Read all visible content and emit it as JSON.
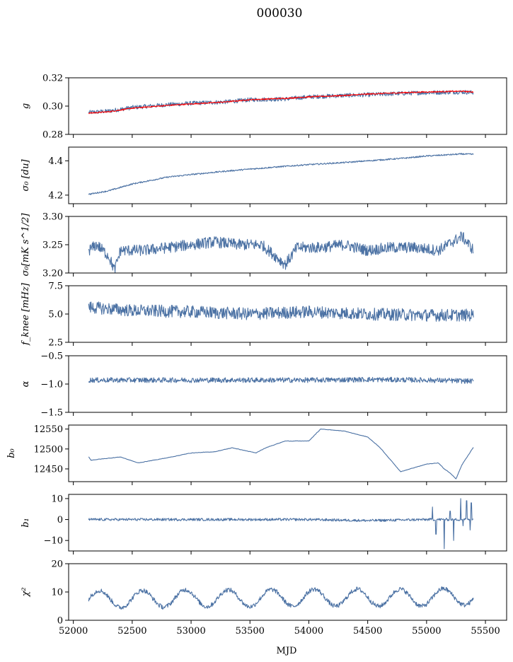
{
  "figure": {
    "title": "000030"
  },
  "chart_data": [
    {
      "type": "line",
      "ylabel": "g",
      "ylim": [
        0.28,
        0.32
      ],
      "yticks": [
        0.28,
        0.3,
        0.32
      ],
      "ytick_labels": [
        "0.28",
        "0.30",
        "0.32"
      ],
      "x": [
        52130,
        52300,
        52500,
        52800,
        53000,
        53300,
        53500,
        53800,
        54000,
        54300,
        54500,
        54800,
        55000,
        55300,
        55400
      ],
      "series": [
        {
          "color": "#4c72a4",
          "values": [
            0.2955,
            0.2965,
            0.299,
            0.301,
            0.302,
            0.303,
            0.3045,
            0.305,
            0.3065,
            0.3075,
            0.308,
            0.309,
            0.3095,
            0.31,
            0.3095
          ],
          "noise": 0.0015
        },
        {
          "color": "#ff0000",
          "values": [
            0.295,
            0.296,
            0.2985,
            0.3005,
            0.3015,
            0.303,
            0.3045,
            0.3055,
            0.3065,
            0.3075,
            0.3085,
            0.3095,
            0.31,
            0.3105,
            0.31
          ],
          "noise": 0.0004,
          "width": 2.5
        }
      ]
    },
    {
      "type": "line",
      "ylabel": "σ₀ [du]",
      "ylim": [
        4.15,
        4.48
      ],
      "yticks": [
        4.2,
        4.4
      ],
      "ytick_labels": [
        "4.2",
        "4.4"
      ],
      "x": [
        52130,
        52300,
        52500,
        52800,
        53000,
        53300,
        53500,
        53800,
        54000,
        54300,
        54500,
        54800,
        55000,
        55300,
        55400
      ],
      "series": [
        {
          "color": "#4c72a4",
          "values": [
            4.205,
            4.225,
            4.265,
            4.305,
            4.32,
            4.34,
            4.352,
            4.368,
            4.378,
            4.39,
            4.4,
            4.415,
            4.428,
            4.44,
            4.438
          ],
          "noise": 0.004
        }
      ]
    },
    {
      "type": "line",
      "ylabel": "σ₀[mK s^1/2]",
      "ylim": [
        3.2,
        3.3
      ],
      "yticks": [
        3.2,
        3.25,
        3.3
      ],
      "ytick_labels": [
        "3.20",
        "3.25",
        "3.30"
      ],
      "x": [
        52130,
        52200,
        52300,
        52350,
        52400,
        52600,
        52800,
        53000,
        53200,
        53400,
        53600,
        53800,
        53900,
        54100,
        54300,
        54500,
        54700,
        54900,
        55100,
        55300,
        55400
      ],
      "series": [
        {
          "color": "#4c72a4",
          "values": [
            3.24,
            3.25,
            3.23,
            3.205,
            3.24,
            3.24,
            3.245,
            3.25,
            3.255,
            3.25,
            3.25,
            3.215,
            3.245,
            3.245,
            3.25,
            3.24,
            3.245,
            3.245,
            3.24,
            3.265,
            3.24
          ],
          "noise": 0.01
        }
      ]
    },
    {
      "type": "line",
      "ylabel": "f_knee [mHz]",
      "ylim": [
        2.5,
        7.5
      ],
      "yticks": [
        2.5,
        5.0,
        7.5
      ],
      "ytick_labels": [
        "2.5",
        "5.0",
        "7.5"
      ],
      "x": [
        52130,
        52500,
        53000,
        53500,
        54000,
        54500,
        55000,
        55400
      ],
      "series": [
        {
          "color": "#4c72a4",
          "values": [
            5.6,
            5.3,
            5.2,
            5.0,
            5.2,
            5.0,
            4.9,
            4.9
          ],
          "noise": 0.55
        }
      ]
    },
    {
      "type": "line",
      "ylabel": "α",
      "ylim": [
        -1.5,
        -0.5
      ],
      "yticks": [
        -1.5,
        -1.0,
        -0.5
      ],
      "ytick_labels": [
        "−1.5",
        "−1.0",
        "−0.5"
      ],
      "x": [
        52130,
        52500,
        53000,
        53500,
        54000,
        54500,
        55000,
        55400
      ],
      "series": [
        {
          "color": "#4c72a4",
          "values": [
            -0.93,
            -0.93,
            -0.93,
            -0.93,
            -0.93,
            -0.92,
            -0.93,
            -0.95
          ],
          "noise": 0.045
        }
      ]
    },
    {
      "type": "line",
      "ylabel": "b₀",
      "ylim": [
        12418,
        12560
      ],
      "yticks": [
        12450,
        12500,
        12550
      ],
      "ytick_labels": [
        "12450",
        "12500",
        "12550"
      ],
      "x": [
        52130,
        52150,
        52400,
        52550,
        52800,
        53000,
        53200,
        53350,
        53550,
        53650,
        53800,
        54000,
        54100,
        54300,
        54500,
        54600,
        54780,
        55000,
        55100,
        55150,
        55200,
        55250,
        55300,
        55400
      ],
      "series": [
        {
          "color": "#4c72a4",
          "values": [
            12480,
            12472,
            12480,
            12465,
            12478,
            12490,
            12493,
            12503,
            12490,
            12505,
            12520,
            12520,
            12550,
            12545,
            12530,
            12505,
            12443,
            12462,
            12465,
            12450,
            12440,
            12425,
            12460,
            12505
          ],
          "noise": 0.8
        }
      ]
    },
    {
      "type": "line",
      "ylabel": "b₁",
      "ylim": [
        -15,
        12
      ],
      "yticks": [
        -10,
        0,
        10
      ],
      "ytick_labels": [
        "−10",
        "0",
        "10"
      ],
      "x": [
        52130,
        52500,
        53000,
        53500,
        54000,
        54500,
        55000,
        55400
      ],
      "series": [
        {
          "color": "#4c72a4",
          "values": [
            0,
            0,
            0,
            0,
            0,
            -0.5,
            0,
            0
          ],
          "noise": 0.6,
          "spikes": [
            [
              55050,
              6
            ],
            [
              55080,
              -7
            ],
            [
              55150,
              -14
            ],
            [
              55200,
              4
            ],
            [
              55230,
              -10
            ],
            [
              55290,
              10
            ],
            [
              55310,
              -3
            ],
            [
              55340,
              9
            ],
            [
              55370,
              -5
            ],
            [
              55380,
              8
            ]
          ]
        }
      ]
    },
    {
      "type": "line",
      "ylabel": "χ²",
      "ylim": [
        0,
        20
      ],
      "yticks": [
        0,
        10,
        20
      ],
      "ytick_labels": [
        "0",
        "10",
        "20"
      ],
      "x": [
        52130,
        52500,
        53000,
        53500,
        54000,
        54500,
        55000,
        55400
      ],
      "series": [
        {
          "color": "#4c72a4",
          "values": [
            7.5,
            7.5,
            7.8,
            7.8,
            8.0,
            8.0,
            8.0,
            8.5
          ],
          "noise": 0.8,
          "seasonal_amplitude": 3.0,
          "seasonal_period": 365
        }
      ]
    }
  ],
  "x_axis": {
    "label": "MJD",
    "xlim": [
      51960,
      55680
    ],
    "ticks": [
      52000,
      52500,
      53000,
      53500,
      54000,
      54500,
      55000,
      55500
    ],
    "tick_labels": [
      "52000",
      "52500",
      "53000",
      "53500",
      "54000",
      "54500",
      "55000",
      "55500"
    ]
  }
}
